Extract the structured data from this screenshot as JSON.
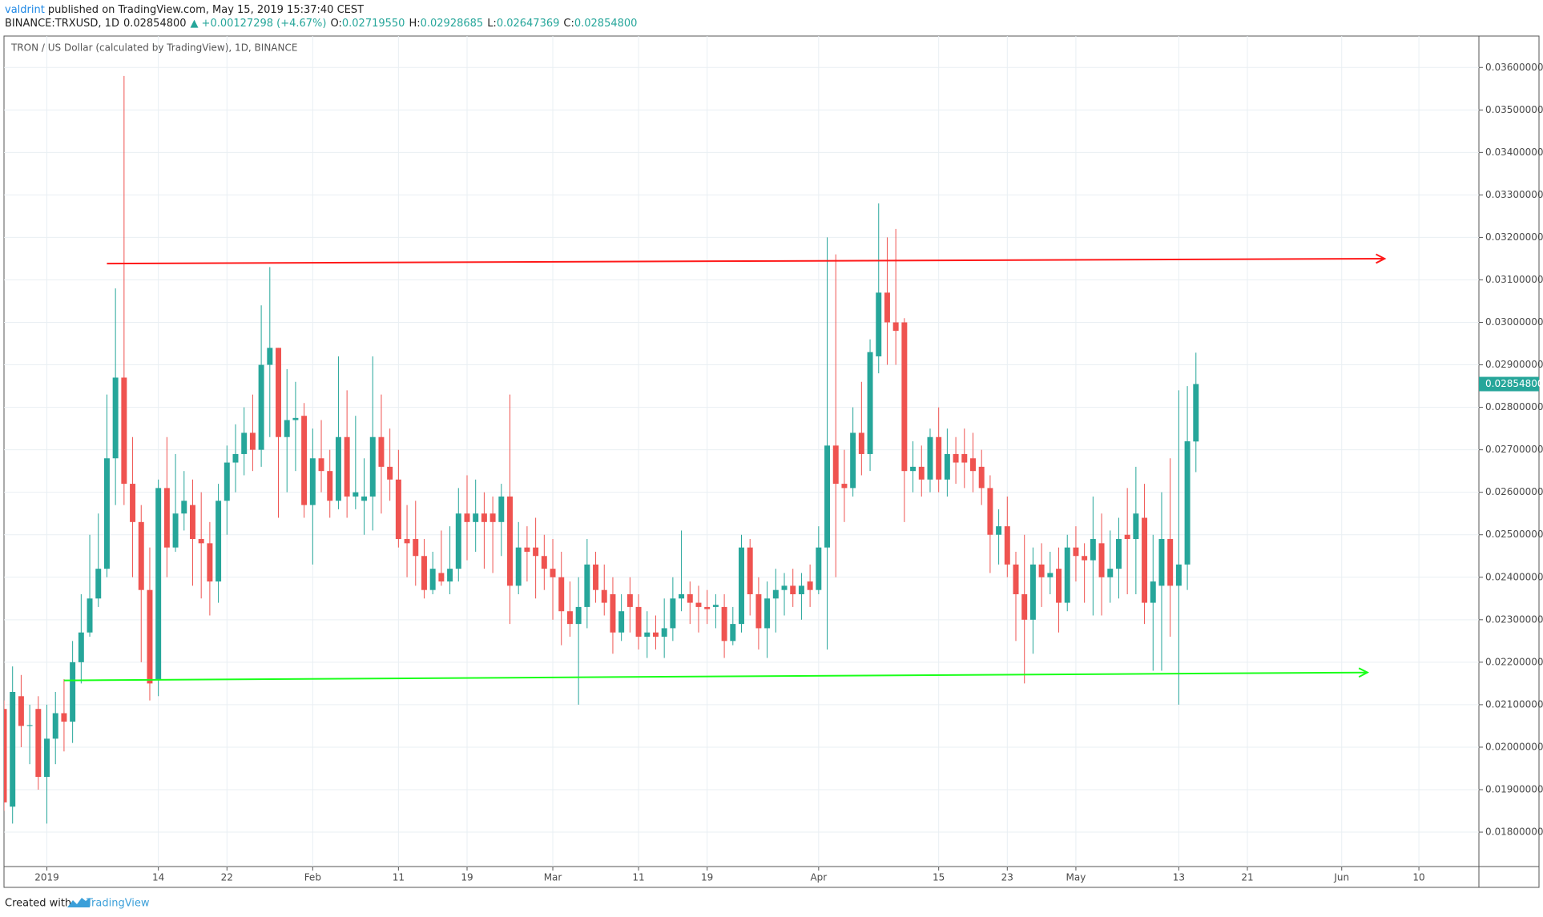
{
  "header": {
    "author": "valdrint",
    "published": "published on TradingView.com, May 15, 2019 15:37:40 CEST"
  },
  "legend": {
    "symbol": "BINANCE:TRXUSD, 1D",
    "price": "0.02854800",
    "arrow": "▲",
    "change": "+0.00127298 (+4.67%)",
    "open_label": "O:",
    "open": "0.02719550",
    "high_label": "H:",
    "high": "0.02928685",
    "low_label": "L:",
    "low": "0.02647369",
    "close_label": "C:",
    "close": "0.02854800"
  },
  "chart_data": {
    "type": "candlestick",
    "title": "TRON / US Dollar (calculated by TradingView), 1D, BINANCE",
    "x": [
      "2018-12-27",
      "2018-12-28",
      "2018-12-29",
      "2018-12-30",
      "2018-12-31",
      "2019-01-01",
      "2019-01-02",
      "2019-01-03",
      "2019-01-04",
      "2019-01-05",
      "2019-01-06",
      "2019-01-07",
      "2019-01-08",
      "2019-01-09",
      "2019-01-10",
      "2019-01-11",
      "2019-01-12",
      "2019-01-13",
      "2019-01-14",
      "2019-01-15",
      "2019-01-16",
      "2019-01-17",
      "2019-01-18",
      "2019-01-19",
      "2019-01-20",
      "2019-01-21",
      "2019-01-22",
      "2019-01-23",
      "2019-01-24",
      "2019-01-25",
      "2019-01-26",
      "2019-01-27",
      "2019-01-28",
      "2019-01-29",
      "2019-01-30",
      "2019-01-31",
      "2019-02-01",
      "2019-02-02",
      "2019-02-03",
      "2019-02-04",
      "2019-02-05",
      "2019-02-06",
      "2019-02-07",
      "2019-02-08",
      "2019-02-09",
      "2019-02-10",
      "2019-02-11",
      "2019-02-12",
      "2019-02-13",
      "2019-02-14",
      "2019-02-15",
      "2019-02-16",
      "2019-02-17",
      "2019-02-18",
      "2019-02-19",
      "2019-02-20",
      "2019-02-21",
      "2019-02-22",
      "2019-02-23",
      "2019-02-24",
      "2019-02-25",
      "2019-02-26",
      "2019-02-27",
      "2019-02-28",
      "2019-03-01",
      "2019-03-02",
      "2019-03-03",
      "2019-03-04",
      "2019-03-05",
      "2019-03-06",
      "2019-03-07",
      "2019-03-08",
      "2019-03-09",
      "2019-03-10",
      "2019-03-11",
      "2019-03-12",
      "2019-03-13",
      "2019-03-14",
      "2019-03-15",
      "2019-03-16",
      "2019-03-17",
      "2019-03-18",
      "2019-03-19",
      "2019-03-20",
      "2019-03-21",
      "2019-03-22",
      "2019-03-23",
      "2019-03-24",
      "2019-03-25",
      "2019-03-26",
      "2019-03-27",
      "2019-03-28",
      "2019-03-29",
      "2019-03-30",
      "2019-03-31",
      "2019-04-01",
      "2019-04-02",
      "2019-04-03",
      "2019-04-04",
      "2019-04-05",
      "2019-04-06",
      "2019-04-07",
      "2019-04-08",
      "2019-04-09",
      "2019-04-10",
      "2019-04-11",
      "2019-04-12",
      "2019-04-13",
      "2019-04-14",
      "2019-04-15",
      "2019-04-16",
      "2019-04-17",
      "2019-04-18",
      "2019-04-19",
      "2019-04-20",
      "2019-04-21",
      "2019-04-22",
      "2019-04-23",
      "2019-04-24",
      "2019-04-25",
      "2019-04-26",
      "2019-04-27",
      "2019-04-28",
      "2019-04-29",
      "2019-04-30",
      "2019-05-01",
      "2019-05-02",
      "2019-05-03",
      "2019-05-04",
      "2019-05-05",
      "2019-05-06",
      "2019-05-07",
      "2019-05-08",
      "2019-05-09",
      "2019-05-10",
      "2019-05-11",
      "2019-05-12",
      "2019-05-13",
      "2019-05-14",
      "2019-05-15"
    ],
    "open": [
      0.0209,
      0.0186,
      0.0212,
      0.0205,
      0.0209,
      0.0193,
      0.0202,
      0.0208,
      0.0206,
      0.022,
      0.0227,
      0.0235,
      0.0242,
      0.0268,
      0.0287,
      0.0262,
      0.0253,
      0.0237,
      0.0216,
      0.0261,
      0.0247,
      0.0255,
      0.0257,
      0.0249,
      0.0248,
      0.0239,
      0.0258,
      0.0267,
      0.0269,
      0.0274,
      0.027,
      0.029,
      0.0294,
      0.0273,
      0.0277,
      0.0278,
      0.0257,
      0.0268,
      0.0265,
      0.0258,
      0.0273,
      0.0259,
      0.0258,
      0.0259,
      0.0273,
      0.0266,
      0.0263,
      0.0249,
      0.0249,
      0.0245,
      0.0237,
      0.0241,
      0.0239,
      0.0242,
      0.0255,
      0.0253,
      0.0255,
      0.0255,
      0.0253,
      0.0259,
      0.0238,
      0.0247,
      0.0247,
      0.0245,
      0.0242,
      0.024,
      0.0232,
      0.0229,
      0.0233,
      0.0243,
      0.0237,
      0.0236,
      0.0227,
      0.0236,
      0.0233,
      0.0226,
      0.0227,
      0.0226,
      0.0228,
      0.0235,
      0.0236,
      0.0234,
      0.0233,
      0.0233,
      0.0233,
      0.0225,
      0.0229,
      0.0247,
      0.0236,
      0.0228,
      0.0235,
      0.0237,
      0.0238,
      0.0236,
      0.0239,
      0.0237,
      0.0247,
      0.0271,
      0.0262,
      0.0261,
      0.0274,
      0.0269,
      0.0292,
      0.0307,
      0.03,
      0.03,
      0.0265,
      0.0266,
      0.0263,
      0.0273,
      0.0263,
      0.0269,
      0.0269,
      0.0268,
      0.0266,
      0.0261,
      0.025,
      0.0252,
      0.0243,
      0.0236,
      0.023,
      0.0243,
      0.024,
      0.0242,
      0.0234,
      0.0247,
      0.0245,
      0.0244,
      0.0248,
      0.024,
      0.0242,
      0.025,
      0.0249,
      0.0254,
      0.0234,
      0.0238,
      0.0249,
      0.0238,
      0.0243,
      0.0271955
    ],
    "high": [
      0.0211,
      0.0219,
      0.0217,
      0.021,
      0.0212,
      0.021,
      0.0213,
      0.0216,
      0.0225,
      0.0236,
      0.025,
      0.0255,
      0.0283,
      0.0308,
      0.0358,
      0.0273,
      0.0257,
      0.0247,
      0.0263,
      0.0273,
      0.0269,
      0.0265,
      0.0263,
      0.026,
      0.0253,
      0.0262,
      0.0271,
      0.0276,
      0.028,
      0.0283,
      0.0304,
      0.0313,
      0.0294,
      0.0289,
      0.0286,
      0.0281,
      0.0275,
      0.0277,
      0.027,
      0.0292,
      0.0284,
      0.0278,
      0.0268,
      0.0292,
      0.0283,
      0.0275,
      0.027,
      0.0257,
      0.0258,
      0.0249,
      0.0246,
      0.0251,
      0.0252,
      0.0261,
      0.0264,
      0.0263,
      0.026,
      0.0259,
      0.0262,
      0.0283,
      0.0253,
      0.0252,
      0.0254,
      0.025,
      0.0249,
      0.0246,
      0.0239,
      0.024,
      0.0249,
      0.0246,
      0.0243,
      0.024,
      0.0236,
      0.024,
      0.0236,
      0.0232,
      0.0231,
      0.0235,
      0.024,
      0.0251,
      0.0239,
      0.0238,
      0.0237,
      0.0236,
      0.0236,
      0.0233,
      0.025,
      0.0249,
      0.024,
      0.0239,
      0.0242,
      0.0241,
      0.0242,
      0.0241,
      0.0243,
      0.0252,
      0.032,
      0.0316,
      0.027,
      0.028,
      0.0286,
      0.0296,
      0.0328,
      0.032,
      0.0322,
      0.0301,
      0.0272,
      0.0271,
      0.0275,
      0.028,
      0.0275,
      0.0273,
      0.0275,
      0.0274,
      0.027,
      0.0264,
      0.0256,
      0.0259,
      0.0246,
      0.025,
      0.0247,
      0.0248,
      0.0246,
      0.0247,
      0.025,
      0.0252,
      0.0248,
      0.0259,
      0.0255,
      0.0251,
      0.0254,
      0.0261,
      0.0266,
      0.0262,
      0.025,
      0.026,
      0.0268,
      0.0284,
      0.0285,
      0.02928685
    ],
    "low": [
      0.0185,
      0.0182,
      0.02,
      0.0196,
      0.019,
      0.0182,
      0.0196,
      0.0199,
      0.0201,
      0.0215,
      0.0226,
      0.0233,
      0.024,
      0.0257,
      0.0257,
      0.024,
      0.022,
      0.0211,
      0.0212,
      0.024,
      0.0246,
      0.0251,
      0.0238,
      0.0235,
      0.0231,
      0.0234,
      0.025,
      0.026,
      0.0264,
      0.0265,
      0.0266,
      0.0273,
      0.0254,
      0.026,
      0.0265,
      0.0254,
      0.0243,
      0.026,
      0.0254,
      0.0256,
      0.0254,
      0.0256,
      0.025,
      0.0251,
      0.0255,
      0.0258,
      0.0247,
      0.024,
      0.0238,
      0.0235,
      0.0236,
      0.0238,
      0.0236,
      0.0239,
      0.0244,
      0.0246,
      0.0242,
      0.0241,
      0.0245,
      0.0229,
      0.0236,
      0.0239,
      0.0235,
      0.0237,
      0.023,
      0.0224,
      0.0226,
      0.021,
      0.0228,
      0.0234,
      0.0231,
      0.0222,
      0.0225,
      0.0227,
      0.0223,
      0.0221,
      0.0223,
      0.0221,
      0.0225,
      0.0232,
      0.0229,
      0.0227,
      0.0229,
      0.0228,
      0.0221,
      0.0224,
      0.0227,
      0.0231,
      0.0223,
      0.0221,
      0.0227,
      0.0231,
      0.0233,
      0.023,
      0.0233,
      0.0236,
      0.0223,
      0.024,
      0.0253,
      0.0259,
      0.0264,
      0.0265,
      0.0288,
      0.029,
      0.029,
      0.0253,
      0.026,
      0.0259,
      0.026,
      0.026,
      0.0259,
      0.0262,
      0.0261,
      0.026,
      0.0257,
      0.0241,
      0.0243,
      0.024,
      0.0225,
      0.0215,
      0.0222,
      0.0233,
      0.0236,
      0.0227,
      0.0232,
      0.0239,
      0.0234,
      0.0231,
      0.0231,
      0.0234,
      0.0235,
      0.0236,
      0.0236,
      0.0229,
      0.0218,
      0.0218,
      0.0226,
      0.021,
      0.0237,
      0.02647369
    ],
    "close": [
      0.0187,
      0.0213,
      0.0205,
      0.02052,
      0.0193,
      0.0202,
      0.0208,
      0.0206,
      0.022,
      0.0227,
      0.0235,
      0.0242,
      0.0268,
      0.0287,
      0.0262,
      0.0253,
      0.0237,
      0.0215,
      0.0261,
      0.0247,
      0.0255,
      0.0258,
      0.0249,
      0.0248,
      0.0239,
      0.0258,
      0.0267,
      0.0269,
      0.0274,
      0.027,
      0.029,
      0.0294,
      0.0273,
      0.0277,
      0.02775,
      0.0257,
      0.0268,
      0.0265,
      0.0258,
      0.0273,
      0.0259,
      0.026,
      0.0259,
      0.0273,
      0.0266,
      0.0263,
      0.0249,
      0.0248,
      0.0245,
      0.0237,
      0.0242,
      0.0239,
      0.0242,
      0.0255,
      0.0253,
      0.0255,
      0.0253,
      0.0253,
      0.0259,
      0.0238,
      0.0247,
      0.0246,
      0.0245,
      0.0242,
      0.024,
      0.0232,
      0.0229,
      0.0233,
      0.0243,
      0.0237,
      0.0234,
      0.0227,
      0.0232,
      0.0233,
      0.0226,
      0.0227,
      0.0226,
      0.0228,
      0.0235,
      0.0236,
      0.0234,
      0.0233,
      0.02325,
      0.02335,
      0.0225,
      0.0229,
      0.0247,
      0.0236,
      0.0228,
      0.0235,
      0.0237,
      0.0238,
      0.0236,
      0.0238,
      0.0237,
      0.0247,
      0.0271,
      0.0262,
      0.0261,
      0.0274,
      0.0269,
      0.0293,
      0.0307,
      0.03,
      0.0298,
      0.0265,
      0.0266,
      0.0263,
      0.0273,
      0.0263,
      0.0269,
      0.0267,
      0.0267,
      0.0265,
      0.0261,
      0.025,
      0.0252,
      0.0243,
      0.0236,
      0.023,
      0.0243,
      0.024,
      0.0241,
      0.0234,
      0.0247,
      0.0245,
      0.0244,
      0.0249,
      0.024,
      0.0242,
      0.0249,
      0.0249,
      0.0255,
      0.0234,
      0.0239,
      0.0249,
      0.0238,
      0.0243,
      0.0272,
      0.028548
    ],
    "up_color": "#26a69a",
    "down_color": "#ef5350",
    "xlim": [
      "2018-12-27",
      "2019-06-17"
    ],
    "xticks": [
      {
        "value": "2019-01-01",
        "label": "2019"
      },
      {
        "value": "2019-01-14",
        "label": "14"
      },
      {
        "value": "2019-01-22",
        "label": "22"
      },
      {
        "value": "2019-02-01",
        "label": "Feb"
      },
      {
        "value": "2019-02-11",
        "label": "11"
      },
      {
        "value": "2019-02-19",
        "label": "19"
      },
      {
        "value": "2019-03-01",
        "label": "Mar"
      },
      {
        "value": "2019-03-11",
        "label": "11"
      },
      {
        "value": "2019-03-19",
        "label": "19"
      },
      {
        "value": "2019-04-01",
        "label": "Apr"
      },
      {
        "value": "2019-04-15",
        "label": "15"
      },
      {
        "value": "2019-04-23",
        "label": "23"
      },
      {
        "value": "2019-05-01",
        "label": "May"
      },
      {
        "value": "2019-05-13",
        "label": "13"
      },
      {
        "value": "2019-05-21",
        "label": "21"
      },
      {
        "value": "2019-06-01",
        "label": "Jun"
      },
      {
        "value": "2019-06-10",
        "label": "10"
      }
    ],
    "ylim": [
      0.01719,
      0.03674
    ],
    "yticks": [
      {
        "value": 0.018,
        "label": "0.01800000"
      },
      {
        "value": 0.019,
        "label": "0.01900000"
      },
      {
        "value": 0.02,
        "label": "0.02000000"
      },
      {
        "value": 0.021,
        "label": "0.02100000"
      },
      {
        "value": 0.022,
        "label": "0.02200000"
      },
      {
        "value": 0.023,
        "label": "0.02300000"
      },
      {
        "value": 0.024,
        "label": "0.02400000"
      },
      {
        "value": 0.025,
        "label": "0.02500000"
      },
      {
        "value": 0.026,
        "label": "0.02600000"
      },
      {
        "value": 0.027,
        "label": "0.02700000"
      },
      {
        "value": 0.028,
        "label": "0.02800000"
      },
      {
        "value": 0.029,
        "label": "0.02900000"
      },
      {
        "value": 0.03,
        "label": "0.03000000"
      },
      {
        "value": 0.031,
        "label": "0.03100000"
      },
      {
        "value": 0.032,
        "label": "0.03200000"
      },
      {
        "value": 0.033,
        "label": "0.03300000"
      },
      {
        "value": 0.034,
        "label": "0.03400000"
      },
      {
        "value": 0.035,
        "label": "0.03500000"
      },
      {
        "value": 0.036,
        "label": "0.03600000"
      }
    ],
    "grid": true,
    "last_price": {
      "value": 0.028548,
      "label": "0.02854800"
    },
    "lines": [
      {
        "color": "#ff1a1a",
        "x": [
          "2019-01-08",
          "2019-06-06"
        ],
        "y": [
          0.031384,
          0.0315
        ]
      },
      {
        "color": "#1aff1a",
        "x": [
          "2019-01-03",
          "2019-06-04"
        ],
        "y": [
          0.021572,
          0.021758
        ]
      }
    ]
  },
  "footer": {
    "text": "Created with",
    "brand": "TradingView"
  }
}
